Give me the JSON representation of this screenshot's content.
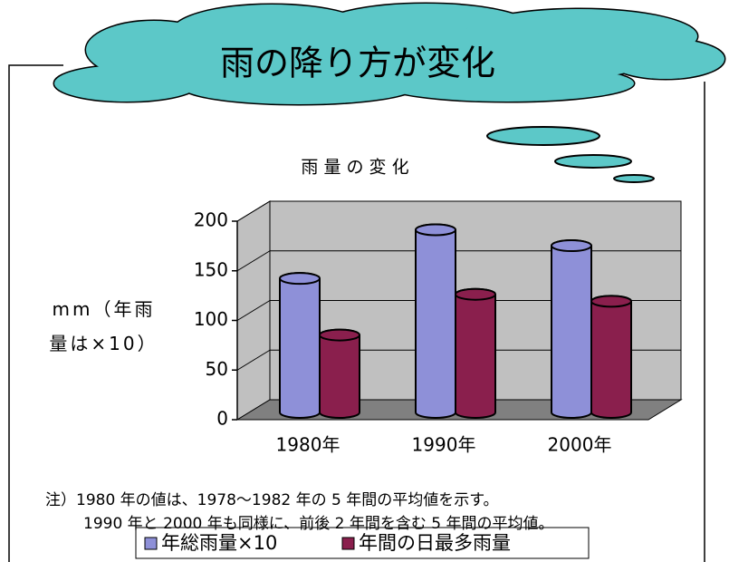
{
  "chart_data": {
    "type": "bar3d",
    "banner": "雨の降り方が変化",
    "title": "雨 量 の 変 化",
    "ylabel": "mm（年雨量は×10）",
    "categories": [
      "1980年",
      "1990年",
      "2000年"
    ],
    "series": [
      {
        "name": "年総雨量×10",
        "color": "#8e90d8",
        "values": [
          135,
          184,
          168
        ]
      },
      {
        "name": "年間の日最多雨量",
        "color": "#8a1f4d",
        "values": [
          78,
          119,
          112
        ]
      }
    ],
    "ylim": [
      0,
      200
    ],
    "yticks": [
      0,
      50,
      100,
      150,
      200
    ],
    "grid": true,
    "notes": [
      "注）1980 年の値は、1978～1982 年の 5 年間の平均値を示す。",
      "1990 年と 2000 年も同様に、前後 2 年間を含む 5 年間の平均値。"
    ]
  }
}
